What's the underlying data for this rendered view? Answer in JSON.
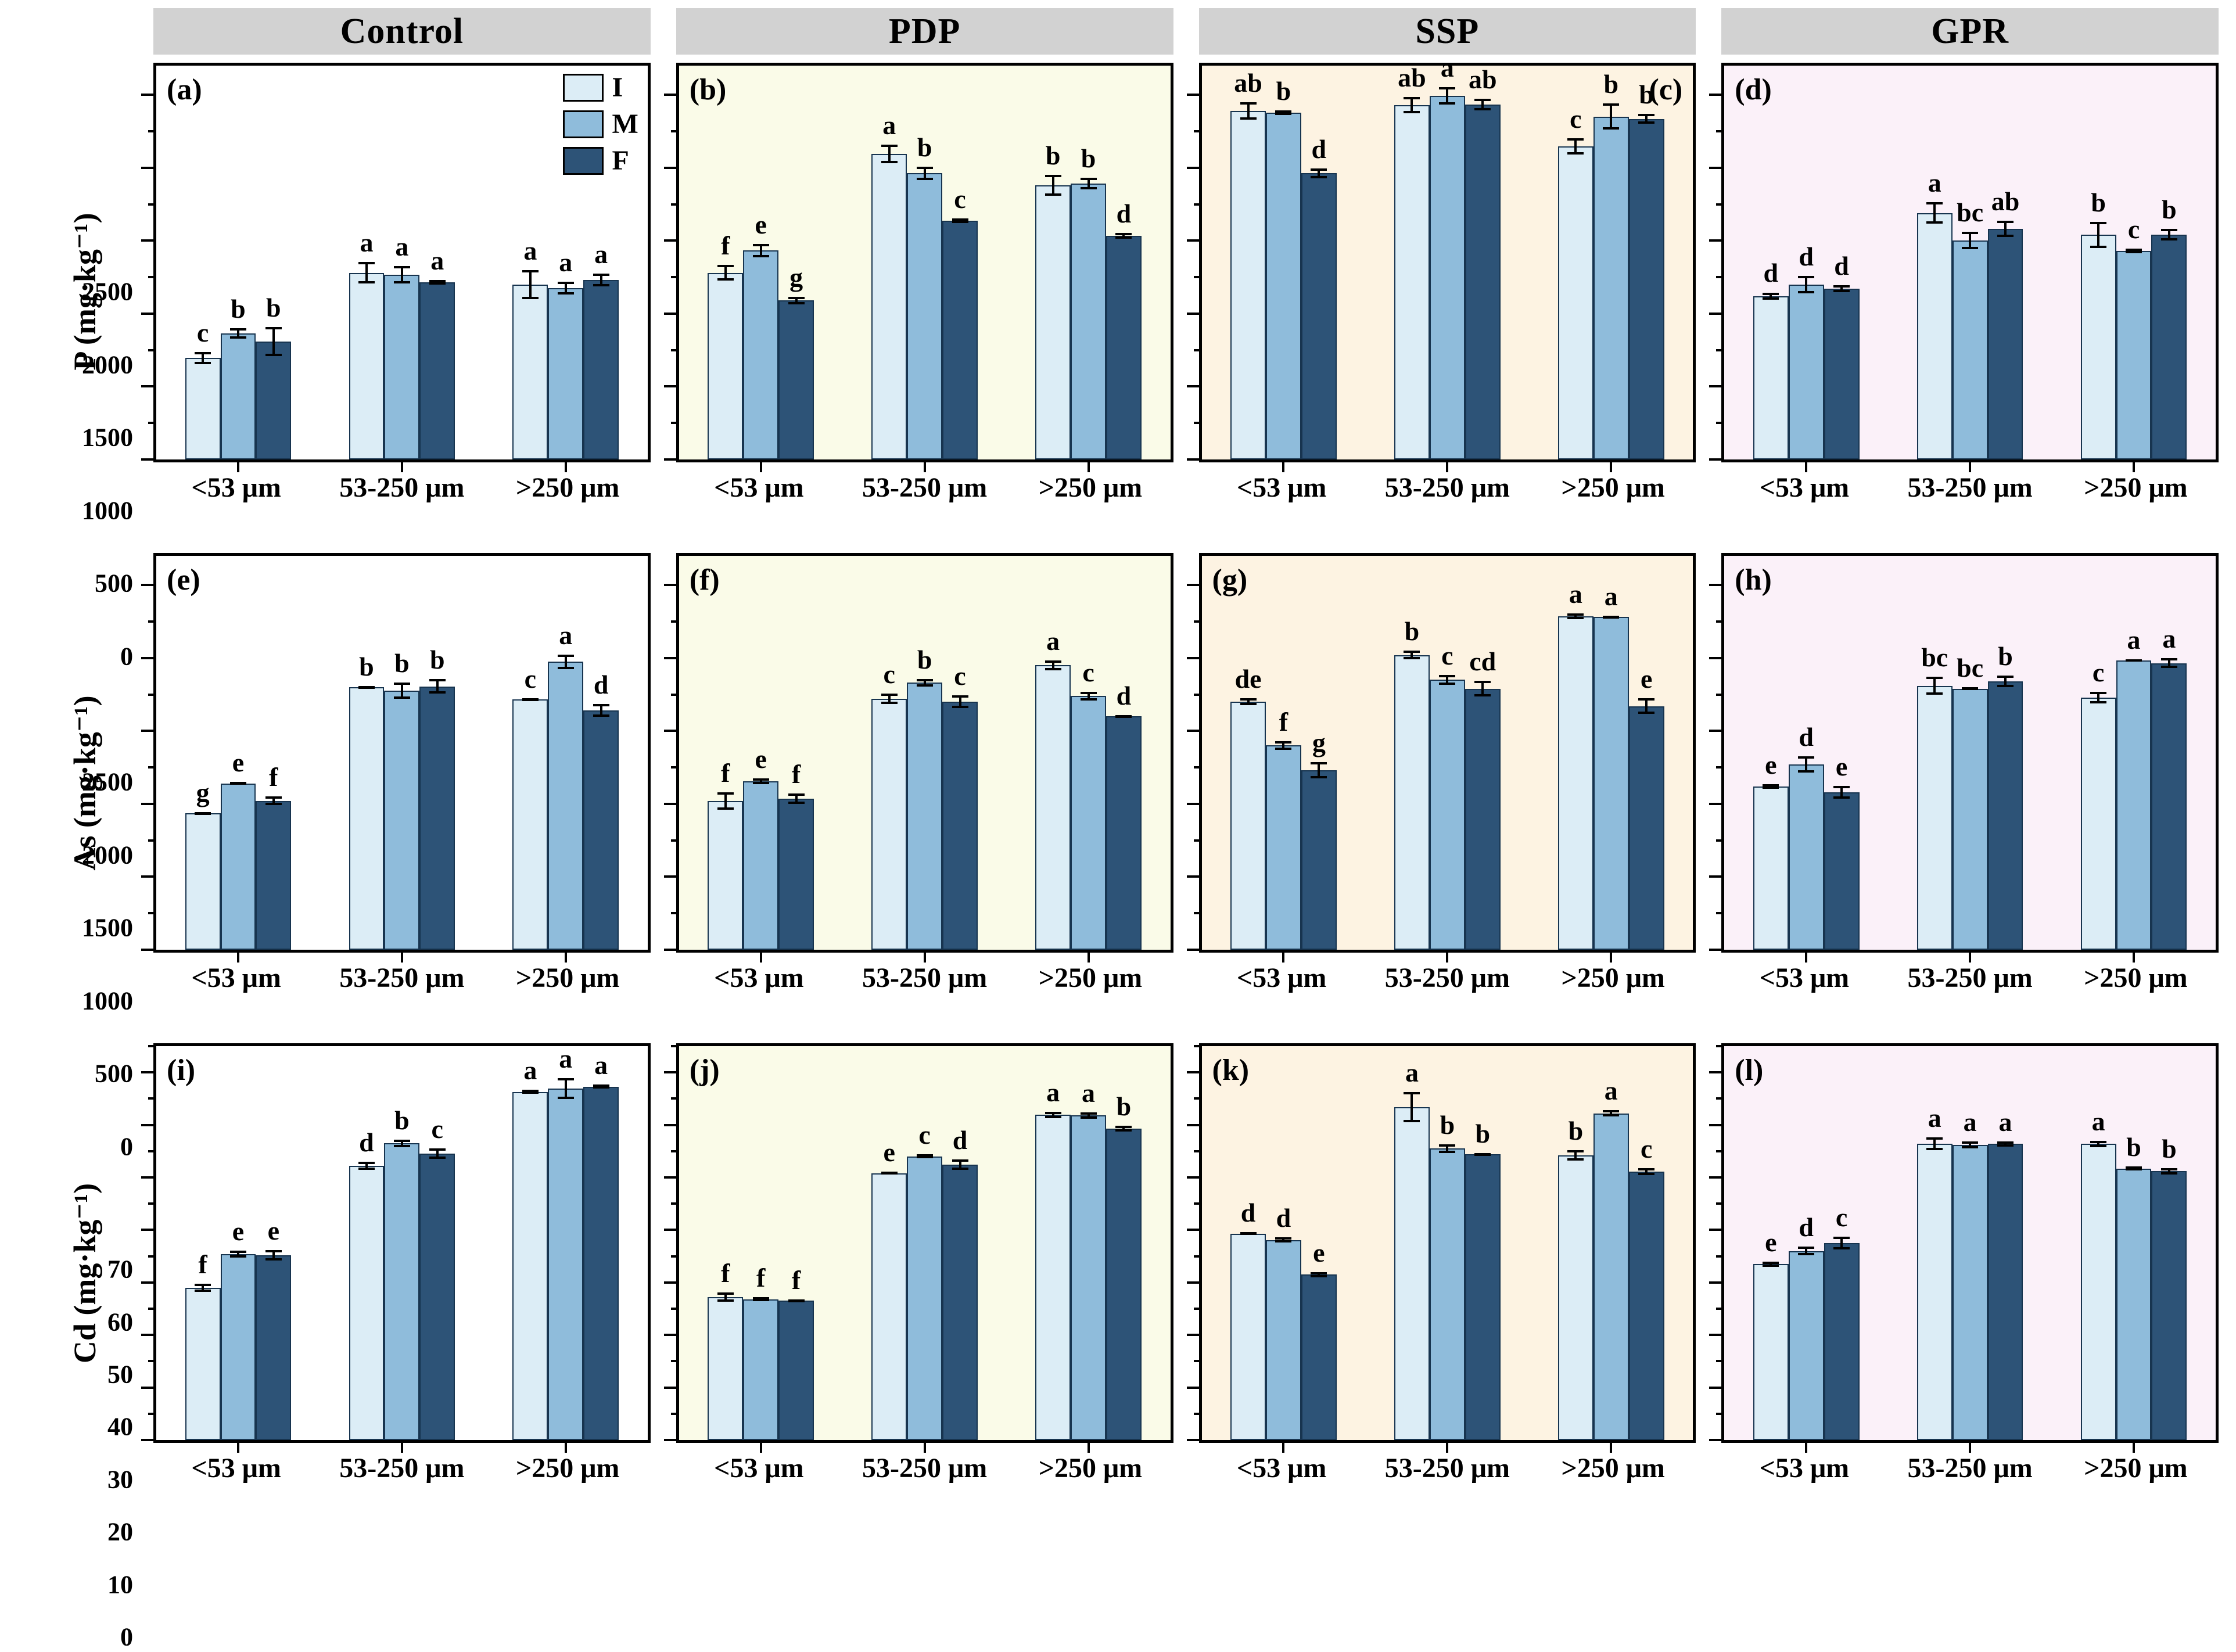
{
  "figure": {
    "columns": [
      "Control",
      "PDP",
      "SSP",
      "GPR"
    ],
    "legend": [
      "I",
      "M",
      "F"
    ],
    "categories": [
      "<53 μm",
      "53-250 μm",
      ">250 μm"
    ],
    "series_colors": [
      "#dcedf6",
      "#8fbcdb",
      "#2d5377"
    ],
    "bar_border_color": "#17344f",
    "panel_bg": {
      "Control": "#ffffff",
      "PDP": "#fafbe8",
      "SSP": "#fdf3e2",
      "GPR": "#fbf1f9"
    },
    "title_bar_color": "#d2d2d2"
  },
  "chart_data": [
    {
      "type": "bar",
      "panel": "a",
      "column": "Control",
      "ylabel": "P (mg·kg⁻¹)",
      "ylim": [
        0,
        2700
      ],
      "ytick_major": 500,
      "ytick_minor": 250,
      "ytick_label_max": 2500,
      "label_pos": "left",
      "bg_color": "#ffffff",
      "categories": [
        "<53 μm",
        "53-250 μm",
        ">250 μm"
      ],
      "legend_inside": true,
      "series": [
        {
          "name": "I",
          "values": [
            695,
            1280,
            1200
          ],
          "errors": [
            40,
            75,
            100
          ],
          "sig": [
            "c",
            "a",
            "a"
          ]
        },
        {
          "name": "M",
          "values": [
            865,
            1265,
            1175
          ],
          "errors": [
            35,
            60,
            45
          ],
          "sig": [
            "b",
            "a",
            "a"
          ]
        },
        {
          "name": "F",
          "values": [
            810,
            1215,
            1230
          ],
          "errors": [
            100,
            15,
            45
          ],
          "sig": [
            "b",
            "a",
            "a"
          ]
        }
      ]
    },
    {
      "type": "bar",
      "panel": "b",
      "column": "PDP",
      "ylabel": "",
      "ylim": [
        0,
        2700
      ],
      "ytick_major": 500,
      "ytick_minor": 250,
      "ytick_label_max": 2500,
      "label_pos": "left",
      "bg_color": "#fafbe8",
      "categories": [
        "<53 μm",
        "53-250 μm",
        ">250 μm"
      ],
      "series": [
        {
          "name": "I",
          "values": [
            1280,
            2095,
            1880
          ],
          "errors": [
            55,
            65,
            70
          ],
          "sig": [
            "f",
            "a",
            "b"
          ]
        },
        {
          "name": "M",
          "values": [
            1432,
            1962,
            1892
          ],
          "errors": [
            45,
            45,
            40
          ],
          "sig": [
            "e",
            "b",
            "b"
          ]
        },
        {
          "name": "F",
          "values": [
            1090,
            1636,
            1535
          ],
          "errors": [
            25,
            15,
            20
          ],
          "sig": [
            "g",
            "c",
            "d"
          ]
        }
      ]
    },
    {
      "type": "bar",
      "panel": "c",
      "column": "SSP",
      "ylabel": "",
      "ylim": [
        0,
        2700
      ],
      "ytick_major": 500,
      "ytick_minor": 250,
      "ytick_label_max": 2500,
      "label_pos": "right",
      "bg_color": "#fdf3e2",
      "categories": [
        "<53 μm",
        "53-250 μm",
        ">250 μm"
      ],
      "series": [
        {
          "name": "I",
          "values": [
            2390,
            2430,
            2147
          ],
          "errors": [
            60,
            55,
            55
          ],
          "sig": [
            "ab",
            "ab",
            "c"
          ]
        },
        {
          "name": "M",
          "values": [
            2378,
            2492,
            2351
          ],
          "errors": [
            15,
            60,
            90
          ],
          "sig": [
            "b",
            "a",
            "b"
          ]
        },
        {
          "name": "F",
          "values": [
            1962,
            2433,
            2335
          ],
          "errors": [
            35,
            40,
            35
          ],
          "sig": [
            "d",
            "ab",
            "b"
          ]
        }
      ]
    },
    {
      "type": "bar",
      "panel": "d",
      "column": "GPR",
      "ylabel": "",
      "ylim": [
        0,
        2700
      ],
      "ytick_major": 500,
      "ytick_minor": 250,
      "ytick_label_max": 2500,
      "label_pos": "left",
      "bg_color": "#fbf1f9",
      "categories": [
        "<53 μm",
        "53-250 μm",
        ">250 μm"
      ],
      "series": [
        {
          "name": "I",
          "values": [
            1120,
            1690,
            1540
          ],
          "errors": [
            25,
            75,
            90
          ],
          "sig": [
            "d",
            "a",
            "b"
          ]
        },
        {
          "name": "M",
          "values": [
            1200,
            1500,
            1430
          ],
          "errors": [
            60,
            60,
            15
          ],
          "sig": [
            "d",
            "bc",
            "c"
          ]
        },
        {
          "name": "F",
          "values": [
            1170,
            1580,
            1540
          ],
          "errors": [
            25,
            55,
            40
          ],
          "sig": [
            "d",
            "ab",
            "b"
          ]
        }
      ]
    },
    {
      "type": "bar",
      "panel": "e",
      "column": "Control",
      "ylabel": "As (mg·kg⁻¹)",
      "ylim": [
        0,
        2700
      ],
      "ytick_major": 500,
      "ytick_minor": 250,
      "ytick_label_max": 2500,
      "label_pos": "left",
      "bg_color": "#ffffff",
      "categories": [
        "<53 μm",
        "53-250 μm",
        ">250 μm"
      ],
      "series": [
        {
          "name": "I",
          "values": [
            935,
            1800,
            1715
          ],
          "errors": [
            10,
            10,
            10
          ],
          "sig": [
            "g",
            "b",
            "c"
          ]
        },
        {
          "name": "M",
          "values": [
            1140,
            1775,
            1975
          ],
          "errors": [
            10,
            55,
            50
          ],
          "sig": [
            "e",
            "b",
            "a"
          ]
        },
        {
          "name": "F",
          "values": [
            1020,
            1805,
            1640
          ],
          "errors": [
            30,
            50,
            45
          ],
          "sig": [
            "f",
            "b",
            "d"
          ]
        }
      ]
    },
    {
      "type": "bar",
      "panel": "f",
      "column": "PDP",
      "ylabel": "",
      "ylim": [
        0,
        2700
      ],
      "ytick_major": 500,
      "ytick_minor": 250,
      "ytick_label_max": 2500,
      "label_pos": "left",
      "bg_color": "#fafbe8",
      "categories": [
        "<53 μm",
        "53-250 μm",
        ">250 μm"
      ],
      "series": [
        {
          "name": "I",
          "values": [
            1020,
            1720,
            1950
          ],
          "errors": [
            60,
            35,
            35
          ],
          "sig": [
            "f",
            "c",
            "a"
          ]
        },
        {
          "name": "M",
          "values": [
            1155,
            1830,
            1740
          ],
          "errors": [
            20,
            25,
            30
          ],
          "sig": [
            "e",
            "b",
            "c"
          ]
        },
        {
          "name": "F",
          "values": [
            1035,
            1700,
            1600
          ],
          "errors": [
            35,
            45,
            10
          ],
          "sig": [
            "f",
            "c",
            "d"
          ]
        }
      ]
    },
    {
      "type": "bar",
      "panel": "g",
      "column": "SSP",
      "ylabel": "",
      "ylim": [
        0,
        2700
      ],
      "ytick_major": 500,
      "ytick_minor": 250,
      "ytick_label_max": 2500,
      "label_pos": "left",
      "bg_color": "#fdf3e2",
      "categories": [
        "<53 μm",
        "53-250 μm",
        ">250 μm"
      ],
      "series": [
        {
          "name": "I",
          "values": [
            1700,
            2020,
            2285
          ],
          "errors": [
            25,
            30,
            20
          ],
          "sig": [
            "de",
            "b",
            "a"
          ]
        },
        {
          "name": "M",
          "values": [
            1400,
            1850,
            2280
          ],
          "errors": [
            30,
            35,
            10
          ],
          "sig": [
            "f",
            "c",
            "a"
          ]
        },
        {
          "name": "F",
          "values": [
            1230,
            1790,
            1670
          ],
          "errors": [
            55,
            55,
            55
          ],
          "sig": [
            "g",
            "cd",
            "e"
          ]
        }
      ]
    },
    {
      "type": "bar",
      "panel": "h",
      "column": "GPR",
      "ylabel": "",
      "ylim": [
        0,
        2700
      ],
      "ytick_major": 500,
      "ytick_minor": 250,
      "ytick_label_max": 2500,
      "label_pos": "left",
      "bg_color": "#fbf1f9",
      "categories": [
        "<53 μm",
        "53-250 μm",
        ">250 μm"
      ],
      "series": [
        {
          "name": "I",
          "values": [
            1120,
            1810,
            1730
          ],
          "errors": [
            15,
            60,
            40
          ],
          "sig": [
            "e",
            "bc",
            "c"
          ]
        },
        {
          "name": "M",
          "values": [
            1270,
            1790,
            1985
          ],
          "errors": [
            55,
            10,
            8
          ],
          "sig": [
            "d",
            "bc",
            "a"
          ]
        },
        {
          "name": "F",
          "values": [
            1080,
            1840,
            1965
          ],
          "errors": [
            45,
            40,
            35
          ],
          "sig": [
            "e",
            "b",
            "a"
          ]
        }
      ]
    },
    {
      "type": "bar",
      "panel": "i",
      "column": "Control",
      "ylabel": "Cd (mg·kg⁻¹)",
      "ylim": [
        0,
        75
      ],
      "ytick_major": 10,
      "ytick_minor": 5,
      "ytick_label_max": 70,
      "label_pos": "left",
      "bg_color": "#ffffff",
      "categories": [
        "<53 μm",
        "53-250 μm",
        ">250 μm"
      ],
      "series": [
        {
          "name": "I",
          "values": [
            29.0,
            52.2,
            66.3
          ],
          "errors": [
            0.8,
            0.8,
            0.4
          ],
          "sig": [
            "f",
            "d",
            "a"
          ]
        },
        {
          "name": "M",
          "values": [
            35.4,
            56.5,
            66.9
          ],
          "errors": [
            0.7,
            0.7,
            2.0
          ],
          "sig": [
            "e",
            "b",
            "a"
          ]
        },
        {
          "name": "F",
          "values": [
            35.2,
            54.5,
            67.3
          ],
          "errors": [
            1.0,
            1.0,
            0.4
          ],
          "sig": [
            "e",
            "c",
            "a"
          ]
        }
      ]
    },
    {
      "type": "bar",
      "panel": "j",
      "column": "PDP",
      "ylabel": "",
      "ylim": [
        0,
        75
      ],
      "ytick_major": 10,
      "ytick_minor": 5,
      "ytick_label_max": 70,
      "label_pos": "left",
      "bg_color": "#fafbe8",
      "categories": [
        "<53 μm",
        "53-250 μm",
        ">250 μm"
      ],
      "series": [
        {
          "name": "I",
          "values": [
            27.2,
            50.8,
            61.9
          ],
          "errors": [
            0.9,
            0.3,
            0.6
          ],
          "sig": [
            "f",
            "e",
            "a"
          ]
        },
        {
          "name": "M",
          "values": [
            26.8,
            54.0,
            61.8
          ],
          "errors": [
            0.4,
            0.4,
            0.6
          ],
          "sig": [
            "f",
            "c",
            "a"
          ]
        },
        {
          "name": "F",
          "values": [
            26.5,
            52.4,
            59.3
          ],
          "errors": [
            0.3,
            1.0,
            0.6
          ],
          "sig": [
            "f",
            "d",
            "b"
          ]
        }
      ]
    },
    {
      "type": "bar",
      "panel": "k",
      "column": "SSP",
      "ylabel": "",
      "ylim": [
        0,
        75
      ],
      "ytick_major": 10,
      "ytick_minor": 5,
      "ytick_label_max": 70,
      "label_pos": "left",
      "bg_color": "#fdf3e2",
      "categories": [
        "<53 μm",
        "53-250 μm",
        ">250 μm"
      ],
      "series": [
        {
          "name": "I",
          "values": [
            39.3,
            63.4,
            54.2
          ],
          "errors": [
            0.3,
            2.9,
            1.0
          ],
          "sig": [
            "d",
            "a",
            "b"
          ]
        },
        {
          "name": "M",
          "values": [
            38.1,
            55.5,
            62.2
          ],
          "errors": [
            0.5,
            0.8,
            0.6
          ],
          "sig": [
            "d",
            "b",
            "a"
          ]
        },
        {
          "name": "F",
          "values": [
            31.5,
            54.4,
            51.1
          ],
          "errors": [
            0.5,
            0.3,
            0.7
          ],
          "sig": [
            "e",
            "b",
            "c"
          ]
        }
      ]
    },
    {
      "type": "bar",
      "panel": "l",
      "column": "GPR",
      "ylabel": "",
      "ylim": [
        0,
        75
      ],
      "ytick_major": 10,
      "ytick_minor": 5,
      "ytick_label_max": 70,
      "label_pos": "left",
      "bg_color": "#fbf1f9",
      "categories": [
        "<53 μm",
        "53-250 μm",
        ">250 μm"
      ],
      "series": [
        {
          "name": "I",
          "values": [
            33.5,
            56.4,
            56.4
          ],
          "errors": [
            0.5,
            1.2,
            0.6
          ],
          "sig": [
            "e",
            "a",
            "a"
          ]
        },
        {
          "name": "M",
          "values": [
            36.0,
            56.2,
            51.7
          ],
          "errors": [
            0.8,
            0.7,
            0.4
          ],
          "sig": [
            "d",
            "a",
            "b"
          ]
        },
        {
          "name": "F",
          "values": [
            37.5,
            56.4,
            51.2
          ],
          "errors": [
            1.2,
            0.5,
            0.6
          ],
          "sig": [
            "c",
            "a",
            "b"
          ]
        }
      ]
    }
  ]
}
